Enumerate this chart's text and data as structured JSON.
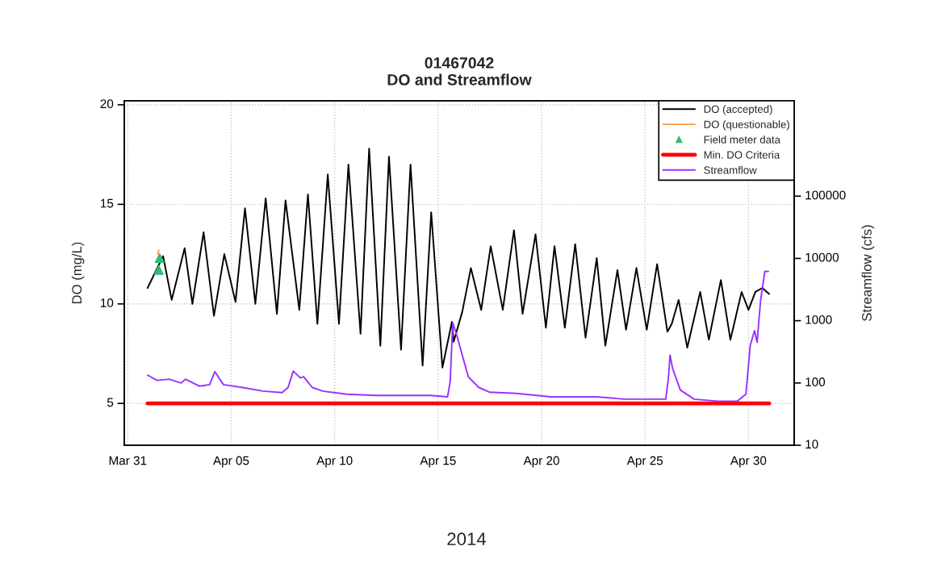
{
  "chart_data": {
    "type": "line",
    "title": "01467042",
    "subtitle": "DO and Streamflow",
    "ylabel": "DO (mg/L)",
    "y2label": "Streamflow (cfs)",
    "annotations": [
      "2014"
    ],
    "xlim": [
      "2014-03-30T20:00",
      "2014-05-02T05:00"
    ],
    "xticks": [
      {
        "value": "2014-03-31",
        "label": "Mar 31"
      },
      {
        "value": "2014-04-05",
        "label": "Apr 05"
      },
      {
        "value": "2014-04-10",
        "label": "Apr 10"
      },
      {
        "value": "2014-04-15",
        "label": "Apr 15"
      },
      {
        "value": "2014-04-20",
        "label": "Apr 20"
      },
      {
        "value": "2014-04-25",
        "label": "Apr 25"
      },
      {
        "value": "2014-04-30",
        "label": "Apr 30"
      }
    ],
    "ylim": [
      2.9,
      20.2
    ],
    "yticks": [
      5,
      10,
      15,
      20
    ],
    "y2lim": [
      10,
      3400000
    ],
    "y2ticks": [
      10,
      100,
      1000,
      10000,
      100000
    ],
    "log": "y2",
    "grid": true,
    "legend": "top right",
    "series": [
      {
        "name": "DO (accepted)",
        "color": "#000000",
        "x": [
          "2014-03-31T23:00",
          "2014-04-01T17:00",
          "2014-04-02T03:00",
          "2014-04-02T18:00",
          "2014-04-03T03:00",
          "2014-04-03T16:00",
          "2014-04-04T04:00",
          "2014-04-04T16:00",
          "2014-04-05T05:00",
          "2014-04-05T16:00",
          "2014-04-06T04:00",
          "2014-04-06T16:00",
          "2014-04-07T05:00",
          "2014-04-07T15:00",
          "2014-04-08T07:00",
          "2014-04-08T17:00",
          "2014-04-09T04:00",
          "2014-04-09T16:00",
          "2014-04-10T05:00",
          "2014-04-10T16:00",
          "2014-04-11T06:00",
          "2014-04-11T16:00",
          "2014-04-12T05:00",
          "2014-04-12T15:00",
          "2014-04-13T05:00",
          "2014-04-13T16:00",
          "2014-04-14T06:00",
          "2014-04-14T16:00",
          "2014-04-15T05:00",
          "2014-04-15T16:00",
          "2014-04-15T18:00",
          "2014-04-16T04:00",
          "2014-04-16T14:00",
          "2014-04-17T02:00",
          "2014-04-17T13:00",
          "2014-04-18T03:00",
          "2014-04-18T16:00",
          "2014-04-19T02:00",
          "2014-04-19T17:00",
          "2014-04-20T05:00",
          "2014-04-20T15:00",
          "2014-04-21T03:00",
          "2014-04-21T15:00",
          "2014-04-22T03:00",
          "2014-04-22T16:00",
          "2014-04-23T02:00",
          "2014-04-23T16:00",
          "2014-04-24T02:00",
          "2014-04-24T14:00",
          "2014-04-25T02:00",
          "2014-04-25T14:00",
          "2014-04-26T02:00",
          "2014-04-26T07:00",
          "2014-04-26T15:00",
          "2014-04-27T01:00",
          "2014-04-27T16:00",
          "2014-04-28T02:00",
          "2014-04-28T16:00",
          "2014-04-29T03:00",
          "2014-04-29T16:00",
          "2014-04-30T00:00",
          "2014-04-30T08:00",
          "2014-04-30T16:00",
          "2014-05-01T00:00"
        ],
        "values": [
          10.8,
          12.4,
          10.2,
          12.8,
          10.0,
          13.6,
          9.4,
          12.5,
          10.1,
          14.8,
          10.0,
          15.3,
          9.5,
          15.2,
          9.7,
          15.5,
          9.0,
          16.5,
          9.0,
          17.0,
          8.5,
          17.8,
          7.9,
          17.4,
          7.7,
          17.0,
          6.9,
          14.6,
          6.8,
          9.1,
          8.1,
          9.6,
          11.8,
          9.7,
          12.9,
          9.7,
          13.7,
          9.5,
          13.5,
          8.8,
          12.9,
          8.8,
          13.0,
          8.3,
          12.3,
          7.9,
          11.7,
          8.7,
          11.8,
          8.7,
          12.0,
          8.6,
          9.0,
          10.2,
          7.8,
          10.6,
          8.2,
          11.2,
          8.2,
          10.6,
          9.7,
          10.6,
          10.8,
          10.5
        ]
      },
      {
        "name": "DO (questionable)",
        "color": "#ff9933",
        "x": [
          "2014-04-01T11:00",
          "2014-04-01T12:00"
        ],
        "values": [
          12.5,
          12.7
        ]
      },
      {
        "name": "Field meter data",
        "type": "scatter",
        "marker": "triangle",
        "color": "#33bb77",
        "x": [
          "2014-04-01T12:00",
          "2014-04-01T13:00"
        ],
        "values": [
          11.7,
          12.3
        ]
      },
      {
        "name": "Min. DO Criteria",
        "color": "#ff0000",
        "x": [
          "2014-03-31T23:00",
          "2014-05-01T00:00"
        ],
        "values": [
          5,
          5
        ]
      },
      {
        "name": "Streamflow",
        "axis": "y2",
        "color": "#9933ff",
        "x": [
          "2014-03-31T23:00",
          "2014-04-01T10:00",
          "2014-04-02T00:00",
          "2014-04-02T14:00",
          "2014-04-02T19:00",
          "2014-04-03T11:00",
          "2014-04-03T23:00",
          "2014-04-04T05:00",
          "2014-04-04T15:00",
          "2014-04-05T12:00",
          "2014-04-06T13:00",
          "2014-04-07T11:00",
          "2014-04-07T18:00",
          "2014-04-08T00:00",
          "2014-04-08T08:00",
          "2014-04-08T12:00",
          "2014-04-08T22:00",
          "2014-04-09T10:00",
          "2014-04-10T14:00",
          "2014-04-12T00:00",
          "2014-04-13T08:00",
          "2014-04-14T15:00",
          "2014-04-15T11:00",
          "2014-04-15T14:00",
          "2014-04-15T17:00",
          "2014-04-15T22:00",
          "2014-04-16T04:00",
          "2014-04-16T11:00",
          "2014-04-16T23:00",
          "2014-04-17T12:00",
          "2014-04-18T19:00",
          "2014-04-20T11:00",
          "2014-04-22T16:00",
          "2014-04-24T00:00",
          "2014-04-26T00:00",
          "2014-04-26T03:00",
          "2014-04-26T05:00",
          "2014-04-26T08:00",
          "2014-04-26T17:00",
          "2014-04-27T09:00",
          "2014-04-28T13:00",
          "2014-04-29T11:00",
          "2014-04-29T21:00",
          "2014-04-30T02:00",
          "2014-04-30T07:00",
          "2014-04-30T10:00",
          "2014-04-30T14:00",
          "2014-04-30T19:00",
          "2014-04-30T23:00"
        ],
        "values": [
          134,
          110,
          115,
          100,
          115,
          89,
          94,
          152,
          94,
          85,
          74,
          70,
          85,
          155,
          121,
          126,
          85,
          74,
          66,
          63,
          63,
          63,
          60,
          105,
          930,
          560,
          280,
          126,
          85,
          71,
          68,
          60,
          60,
          55,
          55,
          115,
          280,
          170,
          77,
          55,
          51,
          51,
          66,
          400,
          690,
          450,
          2100,
          6200,
          6200
        ]
      }
    ]
  }
}
